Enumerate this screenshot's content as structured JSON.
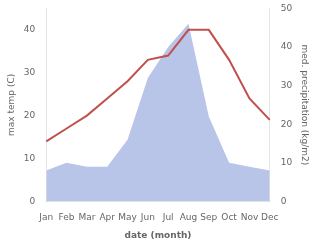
{
  "chart_data": {
    "type": "line",
    "xlabel": "date (month)",
    "ylabel": "max temp (C)",
    "y2label": "med. precipitation (kg/m2)",
    "categories": [
      "Jan",
      "Feb",
      "Mar",
      "Apr",
      "May",
      "Jun",
      "Jul",
      "Aug",
      "Sep",
      "Oct",
      "Nov",
      "Dec"
    ],
    "series": [
      {
        "type": "line",
        "color": "#c0504d",
        "values": [
          14,
          17,
          20,
          24,
          28,
          33,
          34,
          40,
          40,
          33,
          24,
          19
        ]
      },
      {
        "type": "area",
        "color": "#b8c4e8",
        "axis": "y2",
        "values": [
          8,
          10,
          9,
          9,
          16,
          32,
          40,
          46,
          22,
          10,
          9,
          8
        ]
      }
    ],
    "ylim": [
      0,
      45
    ],
    "yticks": [
      0,
      10,
      20,
      30,
      40
    ],
    "y2lim": [
      0,
      50
    ],
    "y2ticks": [
      0,
      10,
      20,
      30,
      40,
      50
    ],
    "grid": false
  }
}
